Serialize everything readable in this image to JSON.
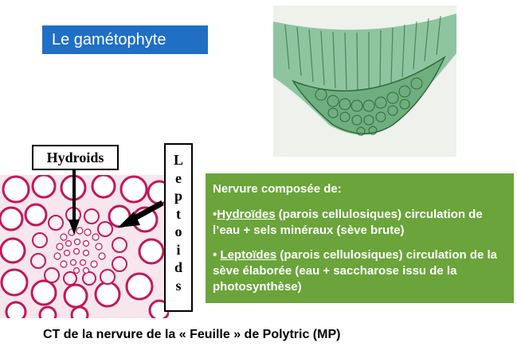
{
  "title": "Le gamétophyte",
  "labels": {
    "hydroids": "Hydroids",
    "leptoids_letters": [
      "L",
      "e",
      "p",
      "t",
      "o",
      "i",
      "d",
      "s"
    ]
  },
  "info_box": {
    "heading": "Nervure composée de:",
    "hydroides_prefix": "•",
    "hydroides_term": "Hydroïdes",
    "hydroides_text": " (parois cellulosiques) circulation de l’eau + sels minéraux (sève brute)",
    "leptoides_prefix": "• ",
    "leptoides_term": "Leptoïdes",
    "leptoides_text": " (parois cellulosiques) circulation de la sève élaborée (eau + saccharose issu de la photosynthèse)"
  },
  "caption": "CT de la nervure de la « Feuille » de Polytric (MP)",
  "colors": {
    "title_bg": "#1f6fc5",
    "info_bg": "#6aa43a",
    "cell_wall_red": "#c2185b",
    "cell_green": "#3f8a4a"
  }
}
